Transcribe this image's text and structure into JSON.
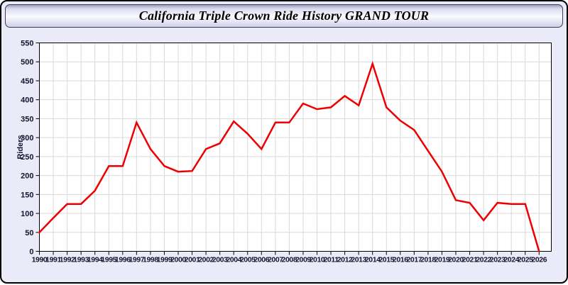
{
  "window": {
    "title": "California Triple Crown Ride History GRAND TOUR"
  },
  "chart_data": {
    "type": "line",
    "title": "California Triple Crown Ride History GRAND TOUR",
    "xlabel": "",
    "ylabel": "Riders",
    "ylim": [
      0,
      550
    ],
    "ytick_step": 50,
    "y_ticks": [
      0,
      50,
      100,
      150,
      200,
      250,
      300,
      350,
      400,
      450,
      500,
      550
    ],
    "grid": true,
    "legend": "none",
    "x": [
      1990,
      1991,
      1992,
      1993,
      1994,
      1995,
      1996,
      1997,
      1998,
      1999,
      2000,
      2001,
      2002,
      2003,
      2004,
      2005,
      2006,
      2007,
      2008,
      2009,
      2010,
      2011,
      2012,
      2013,
      2014,
      2015,
      2016,
      2017,
      2018,
      2019,
      2020,
      2021,
      2022,
      2023,
      2024,
      2025,
      2026
    ],
    "series": [
      {
        "name": "Riders",
        "values": [
          50,
          88,
          125,
          125,
          160,
          225,
          225,
          340,
          270,
          225,
          210,
          212,
          270,
          285,
          343,
          310,
          270,
          340,
          340,
          390,
          375,
          380,
          410,
          385,
          495,
          380,
          345,
          320,
          265,
          210,
          135,
          128,
          82,
          128,
          125,
          125,
          0
        ]
      }
    ],
    "colors": {
      "line": "#ee0000",
      "plot_bg": "#ffffff",
      "grid": "#d9d9d9",
      "axis": "#000000",
      "label": "#15152e",
      "window_bg": "#EAEAF8"
    }
  }
}
